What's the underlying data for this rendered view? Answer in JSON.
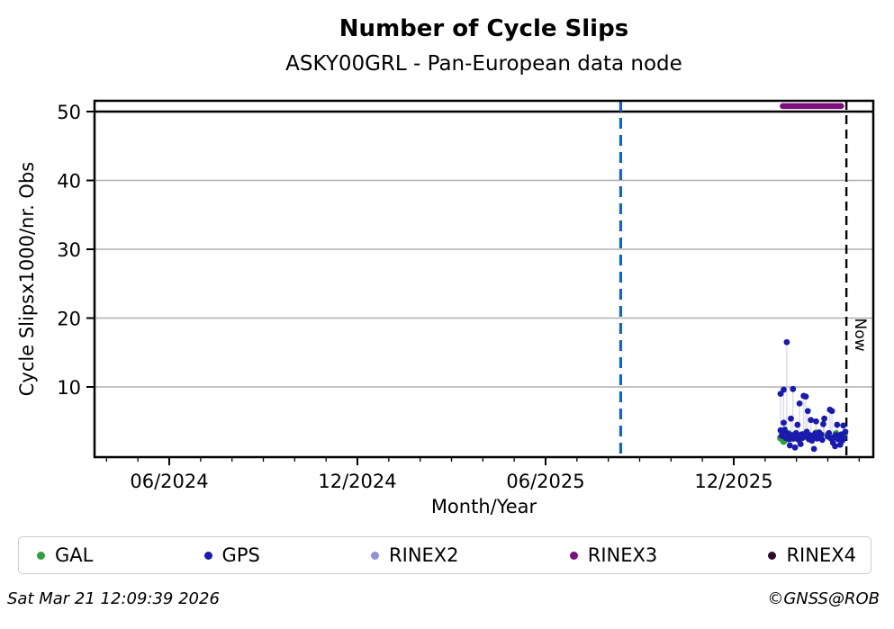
{
  "title": "Number of Cycle Slips",
  "subtitle": "ASKY00GRL - Pan-European data node",
  "now_label": "Now",
  "footer": {
    "timestamp": "Sat Mar 21 12:09:39 2026",
    "credit": "©GNSS@ROB"
  },
  "legend": [
    {
      "label": "GAL",
      "color": "#2f9e41"
    },
    {
      "label": "GPS",
      "color": "#1a1aad"
    },
    {
      "label": "RINEX2",
      "color": "#9191d8"
    },
    {
      "label": "RINEX3",
      "color": "#7d0f7d"
    },
    {
      "label": "RINEX4",
      "color": "#2d0a2d"
    }
  ],
  "chart_data": {
    "type": "scatter",
    "title": "Number of Cycle Slips",
    "subtitle": "ASKY00GRL - Pan-European data node",
    "xlabel": "Month/Year",
    "ylabel": "Cycle Slipsx1000/nr. Obs",
    "x_ticks_major": [
      "06/2024",
      "12/2024",
      "06/2025",
      "12/2025"
    ],
    "x_minor_tick_interval": "1 month",
    "x_range": [
      "2024-03-19",
      "2026-04-14"
    ],
    "y_ticks": [
      10,
      20,
      30,
      40,
      50
    ],
    "ylim": [
      -0.2,
      51.8
    ],
    "grid": true,
    "grid_color": "#b0b0b0",
    "threshold_line": {
      "value": 50,
      "color": "#000000"
    },
    "event_line": {
      "date": "2025-08-13",
      "color": "#1565c0",
      "style": "dashed"
    },
    "now_line": {
      "date": "2026-03-19",
      "color": "#000000",
      "style": "dashed",
      "label": "Now"
    },
    "rinex3_segment": {
      "name": "RINEX3",
      "start": "2026-01-18",
      "end": "2026-03-14",
      "value": 50.8,
      "color": "#7d0f7d"
    },
    "series": [
      {
        "name": "GAL",
        "color": "#2f9e41",
        "marker_radius": 4,
        "points": [
          [
            "2026-01-16",
            2.6
          ],
          [
            "2026-01-18",
            3.0
          ],
          [
            "2026-01-19",
            2.1
          ],
          [
            "2026-01-21",
            2.8
          ],
          [
            "2026-01-24",
            3.2
          ],
          [
            "2026-01-27",
            2.5
          ],
          [
            "2026-01-31",
            2.9
          ],
          [
            "2026-02-04",
            2.4
          ],
          [
            "2026-02-08",
            3.1
          ],
          [
            "2026-02-12",
            2.7
          ],
          [
            "2026-02-16",
            2.5
          ],
          [
            "2026-02-20",
            3.3
          ],
          [
            "2026-02-24",
            2.8
          ],
          [
            "2026-03-01",
            3.0
          ],
          [
            "2026-03-05",
            2.6
          ],
          [
            "2026-03-09",
            3.2
          ],
          [
            "2026-03-13",
            2.9
          ],
          [
            "2026-03-17",
            3.1
          ]
        ]
      },
      {
        "name": "GPS",
        "color": "#1a1aad",
        "marker_radius": 3.4,
        "points": [
          [
            "2026-01-16",
            9.0
          ],
          [
            "2026-01-19",
            9.6
          ],
          [
            "2026-01-22",
            16.5
          ],
          [
            "2026-01-26",
            5.4
          ],
          [
            "2026-01-28",
            9.7
          ],
          [
            "2026-02-04",
            7.6
          ],
          [
            "2026-02-08",
            8.7
          ],
          [
            "2026-02-10",
            8.6
          ],
          [
            "2026-02-12",
            6.5
          ],
          [
            "2026-02-28",
            5.4
          ],
          [
            "2026-03-03",
            6.7
          ],
          [
            "2026-03-05",
            6.5
          ],
          [
            "2026-01-19",
            4.8
          ],
          [
            "2026-02-02",
            4.5
          ],
          [
            "2026-02-15",
            5.2
          ],
          [
            "2026-02-20",
            5.0
          ],
          [
            "2026-02-27",
            4.6
          ],
          [
            "2026-03-10",
            4.5
          ],
          [
            "2026-03-16",
            4.4
          ],
          [
            "2026-01-16",
            3.7
          ],
          [
            "2026-01-17",
            2.9
          ],
          [
            "2026-01-18",
            3.4
          ],
          [
            "2026-01-20",
            3.8
          ],
          [
            "2026-01-21",
            2.6
          ],
          [
            "2026-01-23",
            3.2
          ],
          [
            "2026-01-24",
            2.4
          ],
          [
            "2026-01-25",
            1.5
          ],
          [
            "2026-01-27",
            3.0
          ],
          [
            "2026-01-29",
            2.5
          ],
          [
            "2026-01-30",
            1.2
          ],
          [
            "2026-01-31",
            3.3
          ],
          [
            "2026-02-01",
            2.8
          ],
          [
            "2026-02-03",
            2.3
          ],
          [
            "2026-02-05",
            1.7
          ],
          [
            "2026-02-06",
            3.1
          ],
          [
            "2026-02-07",
            2.6
          ],
          [
            "2026-02-09",
            2.9
          ],
          [
            "2026-02-11",
            3.5
          ],
          [
            "2026-02-13",
            2.4
          ],
          [
            "2026-02-14",
            3.0
          ],
          [
            "2026-02-16",
            2.2
          ],
          [
            "2026-02-17",
            2.7
          ],
          [
            "2026-02-18",
            1.0
          ],
          [
            "2026-02-19",
            3.2
          ],
          [
            "2026-02-21",
            2.5
          ],
          [
            "2026-02-22",
            2.9
          ],
          [
            "2026-02-23",
            3.4
          ],
          [
            "2026-02-24",
            2.6
          ],
          [
            "2026-02-25",
            3.1
          ],
          [
            "2026-02-26",
            2.3
          ],
          [
            "2026-03-01",
            2.8
          ],
          [
            "2026-03-02",
            3.3
          ],
          [
            "2026-03-04",
            2.5
          ],
          [
            "2026-03-06",
            1.9
          ],
          [
            "2026-03-07",
            2.7
          ],
          [
            "2026-03-08",
            1.4
          ],
          [
            "2026-03-09",
            3.0
          ],
          [
            "2026-03-11",
            2.4
          ],
          [
            "2026-03-12",
            2.8
          ],
          [
            "2026-03-13",
            1.6
          ],
          [
            "2026-03-14",
            3.1
          ],
          [
            "2026-03-15",
            2.2
          ],
          [
            "2026-03-17",
            2.6
          ],
          [
            "2026-03-18",
            3.5
          ]
        ]
      },
      {
        "name": "RINEX2",
        "color": "#9191d8",
        "marker_radius": 3.4,
        "points": []
      },
      {
        "name": "RINEX4",
        "color": "#2d0a2d",
        "marker_radius": 3.4,
        "points": []
      }
    ]
  }
}
